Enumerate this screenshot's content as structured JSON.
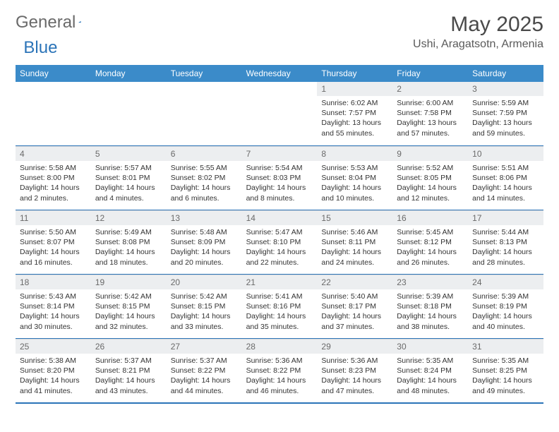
{
  "logo": {
    "text1": "General",
    "text2": "Blue",
    "triangle_color": "#2b74b8"
  },
  "header": {
    "month": "May 2025",
    "location": "Ushi, Aragatsotn, Armenia"
  },
  "colors": {
    "header_bg": "#3b8bc9",
    "header_fg": "#ffffff",
    "daynum_bg": "#eceef0",
    "daynum_fg": "#6a6a6a",
    "border": "#2b74b8"
  },
  "weekdays": [
    "Sunday",
    "Monday",
    "Tuesday",
    "Wednesday",
    "Thursday",
    "Friday",
    "Saturday"
  ],
  "weeks": [
    [
      {
        "empty": true
      },
      {
        "empty": true
      },
      {
        "empty": true
      },
      {
        "empty": true
      },
      {
        "day": "1",
        "sunrise": "Sunrise: 6:02 AM",
        "sunset": "Sunset: 7:57 PM",
        "daylight": "Daylight: 13 hours and 55 minutes."
      },
      {
        "day": "2",
        "sunrise": "Sunrise: 6:00 AM",
        "sunset": "Sunset: 7:58 PM",
        "daylight": "Daylight: 13 hours and 57 minutes."
      },
      {
        "day": "3",
        "sunrise": "Sunrise: 5:59 AM",
        "sunset": "Sunset: 7:59 PM",
        "daylight": "Daylight: 13 hours and 59 minutes."
      }
    ],
    [
      {
        "day": "4",
        "sunrise": "Sunrise: 5:58 AM",
        "sunset": "Sunset: 8:00 PM",
        "daylight": "Daylight: 14 hours and 2 minutes."
      },
      {
        "day": "5",
        "sunrise": "Sunrise: 5:57 AM",
        "sunset": "Sunset: 8:01 PM",
        "daylight": "Daylight: 14 hours and 4 minutes."
      },
      {
        "day": "6",
        "sunrise": "Sunrise: 5:55 AM",
        "sunset": "Sunset: 8:02 PM",
        "daylight": "Daylight: 14 hours and 6 minutes."
      },
      {
        "day": "7",
        "sunrise": "Sunrise: 5:54 AM",
        "sunset": "Sunset: 8:03 PM",
        "daylight": "Daylight: 14 hours and 8 minutes."
      },
      {
        "day": "8",
        "sunrise": "Sunrise: 5:53 AM",
        "sunset": "Sunset: 8:04 PM",
        "daylight": "Daylight: 14 hours and 10 minutes."
      },
      {
        "day": "9",
        "sunrise": "Sunrise: 5:52 AM",
        "sunset": "Sunset: 8:05 PM",
        "daylight": "Daylight: 14 hours and 12 minutes."
      },
      {
        "day": "10",
        "sunrise": "Sunrise: 5:51 AM",
        "sunset": "Sunset: 8:06 PM",
        "daylight": "Daylight: 14 hours and 14 minutes."
      }
    ],
    [
      {
        "day": "11",
        "sunrise": "Sunrise: 5:50 AM",
        "sunset": "Sunset: 8:07 PM",
        "daylight": "Daylight: 14 hours and 16 minutes."
      },
      {
        "day": "12",
        "sunrise": "Sunrise: 5:49 AM",
        "sunset": "Sunset: 8:08 PM",
        "daylight": "Daylight: 14 hours and 18 minutes."
      },
      {
        "day": "13",
        "sunrise": "Sunrise: 5:48 AM",
        "sunset": "Sunset: 8:09 PM",
        "daylight": "Daylight: 14 hours and 20 minutes."
      },
      {
        "day": "14",
        "sunrise": "Sunrise: 5:47 AM",
        "sunset": "Sunset: 8:10 PM",
        "daylight": "Daylight: 14 hours and 22 minutes."
      },
      {
        "day": "15",
        "sunrise": "Sunrise: 5:46 AM",
        "sunset": "Sunset: 8:11 PM",
        "daylight": "Daylight: 14 hours and 24 minutes."
      },
      {
        "day": "16",
        "sunrise": "Sunrise: 5:45 AM",
        "sunset": "Sunset: 8:12 PM",
        "daylight": "Daylight: 14 hours and 26 minutes."
      },
      {
        "day": "17",
        "sunrise": "Sunrise: 5:44 AM",
        "sunset": "Sunset: 8:13 PM",
        "daylight": "Daylight: 14 hours and 28 minutes."
      }
    ],
    [
      {
        "day": "18",
        "sunrise": "Sunrise: 5:43 AM",
        "sunset": "Sunset: 8:14 PM",
        "daylight": "Daylight: 14 hours and 30 minutes."
      },
      {
        "day": "19",
        "sunrise": "Sunrise: 5:42 AM",
        "sunset": "Sunset: 8:15 PM",
        "daylight": "Daylight: 14 hours and 32 minutes."
      },
      {
        "day": "20",
        "sunrise": "Sunrise: 5:42 AM",
        "sunset": "Sunset: 8:15 PM",
        "daylight": "Daylight: 14 hours and 33 minutes."
      },
      {
        "day": "21",
        "sunrise": "Sunrise: 5:41 AM",
        "sunset": "Sunset: 8:16 PM",
        "daylight": "Daylight: 14 hours and 35 minutes."
      },
      {
        "day": "22",
        "sunrise": "Sunrise: 5:40 AM",
        "sunset": "Sunset: 8:17 PM",
        "daylight": "Daylight: 14 hours and 37 minutes."
      },
      {
        "day": "23",
        "sunrise": "Sunrise: 5:39 AM",
        "sunset": "Sunset: 8:18 PM",
        "daylight": "Daylight: 14 hours and 38 minutes."
      },
      {
        "day": "24",
        "sunrise": "Sunrise: 5:39 AM",
        "sunset": "Sunset: 8:19 PM",
        "daylight": "Daylight: 14 hours and 40 minutes."
      }
    ],
    [
      {
        "day": "25",
        "sunrise": "Sunrise: 5:38 AM",
        "sunset": "Sunset: 8:20 PM",
        "daylight": "Daylight: 14 hours and 41 minutes."
      },
      {
        "day": "26",
        "sunrise": "Sunrise: 5:37 AM",
        "sunset": "Sunset: 8:21 PM",
        "daylight": "Daylight: 14 hours and 43 minutes."
      },
      {
        "day": "27",
        "sunrise": "Sunrise: 5:37 AM",
        "sunset": "Sunset: 8:22 PM",
        "daylight": "Daylight: 14 hours and 44 minutes."
      },
      {
        "day": "28",
        "sunrise": "Sunrise: 5:36 AM",
        "sunset": "Sunset: 8:22 PM",
        "daylight": "Daylight: 14 hours and 46 minutes."
      },
      {
        "day": "29",
        "sunrise": "Sunrise: 5:36 AM",
        "sunset": "Sunset: 8:23 PM",
        "daylight": "Daylight: 14 hours and 47 minutes."
      },
      {
        "day": "30",
        "sunrise": "Sunrise: 5:35 AM",
        "sunset": "Sunset: 8:24 PM",
        "daylight": "Daylight: 14 hours and 48 minutes."
      },
      {
        "day": "31",
        "sunrise": "Sunrise: 5:35 AM",
        "sunset": "Sunset: 8:25 PM",
        "daylight": "Daylight: 14 hours and 49 minutes."
      }
    ]
  ]
}
